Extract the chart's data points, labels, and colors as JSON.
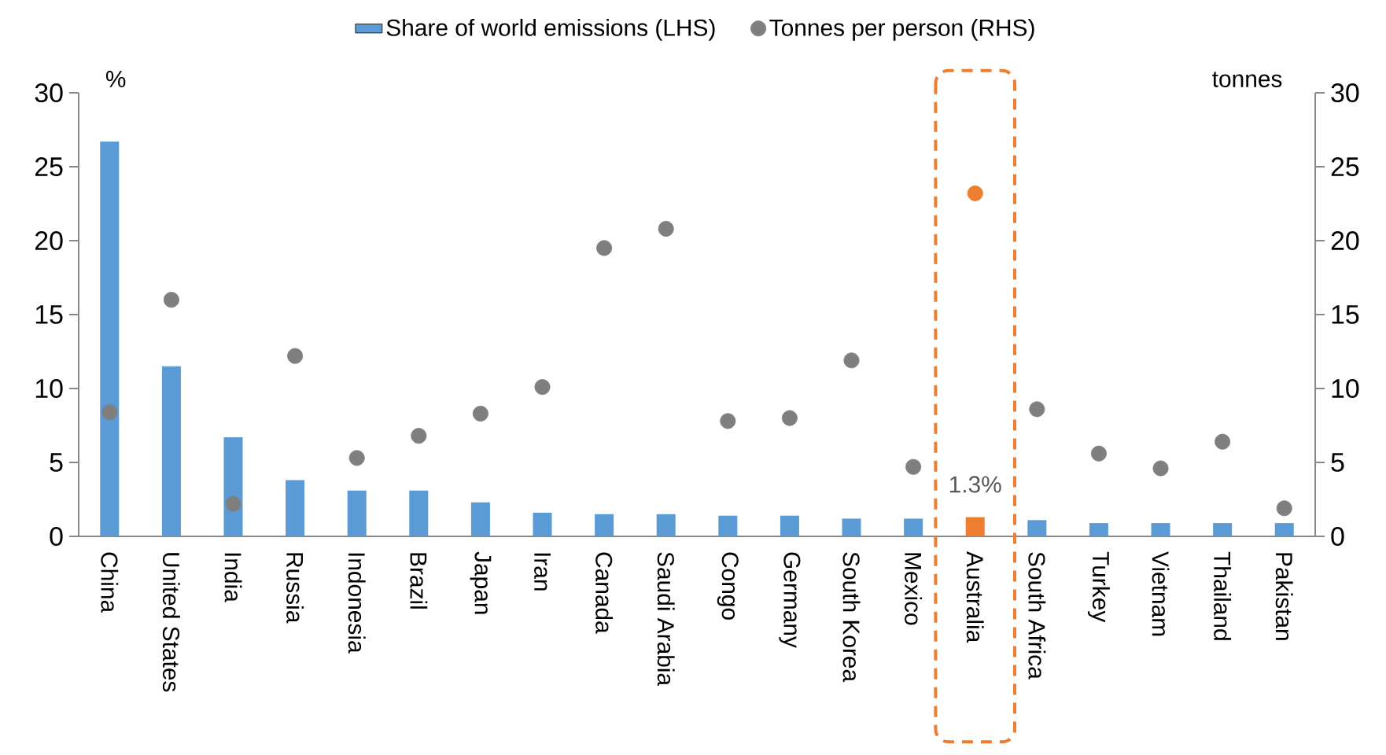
{
  "chart_data": {
    "type": "bar",
    "categories": [
      "China",
      "United States",
      "India",
      "Russia",
      "Indonesia",
      "Brazil",
      "Japan",
      "Iran",
      "Canada",
      "Saudi Arabia",
      "Congo",
      "Germany",
      "South Korea",
      "Mexico",
      "Australia",
      "South Africa",
      "Turkey",
      "Vietnam",
      "Thailand",
      "Pakistan"
    ],
    "series": [
      {
        "name": "Share of world emissions (LHS)",
        "color": "#5b9bd5",
        "colors": [
          "#5b9bd5",
          "#5b9bd5",
          "#5b9bd5",
          "#5b9bd5",
          "#5b9bd5",
          "#5b9bd5",
          "#5b9bd5",
          "#5b9bd5",
          "#5b9bd5",
          "#5b9bd5",
          "#5b9bd5",
          "#5b9bd5",
          "#5b9bd5",
          "#5b9bd5",
          "#ed7d31",
          "#5b9bd5",
          "#5b9bd5",
          "#5b9bd5",
          "#5b9bd5",
          "#5b9bd5"
        ],
        "values": [
          26.7,
          11.5,
          6.7,
          3.8,
          3.1,
          3.1,
          2.3,
          1.6,
          1.5,
          1.5,
          1.4,
          1.4,
          1.2,
          1.2,
          1.3,
          1.1,
          0.9,
          0.9,
          0.9,
          0.9
        ],
        "value_labels": [
          null,
          null,
          null,
          null,
          null,
          null,
          null,
          null,
          null,
          null,
          null,
          null,
          null,
          null,
          "1.3%",
          null,
          null,
          null,
          null,
          null
        ]
      },
      {
        "name": "Tonnes per person (RHS)",
        "type": "scatter",
        "axis": "y2",
        "color": "#7f7f7f",
        "colors": [
          "#7f7f7f",
          "#7f7f7f",
          "#7f7f7f",
          "#7f7f7f",
          "#7f7f7f",
          "#7f7f7f",
          "#7f7f7f",
          "#7f7f7f",
          "#7f7f7f",
          "#7f7f7f",
          "#7f7f7f",
          "#7f7f7f",
          "#7f7f7f",
          "#7f7f7f",
          "#ed7d31",
          "#7f7f7f",
          "#7f7f7f",
          "#7f7f7f",
          "#7f7f7f",
          "#7f7f7f"
        ],
        "values": [
          8.4,
          16.0,
          2.2,
          12.2,
          5.3,
          6.8,
          8.3,
          10.1,
          19.5,
          20.8,
          7.8,
          8.0,
          11.9,
          4.7,
          23.2,
          8.6,
          5.6,
          4.6,
          6.4,
          1.9
        ]
      }
    ],
    "ylabel": "%",
    "y2label": "tonnes",
    "ylim": [
      0,
      30
    ],
    "yticks": [
      0,
      5,
      10,
      15,
      20,
      25,
      30
    ],
    "y2lim": [
      0,
      30
    ],
    "y2ticks": [
      0,
      5,
      10,
      15,
      20,
      25,
      30
    ],
    "legend": "top"
  }
}
